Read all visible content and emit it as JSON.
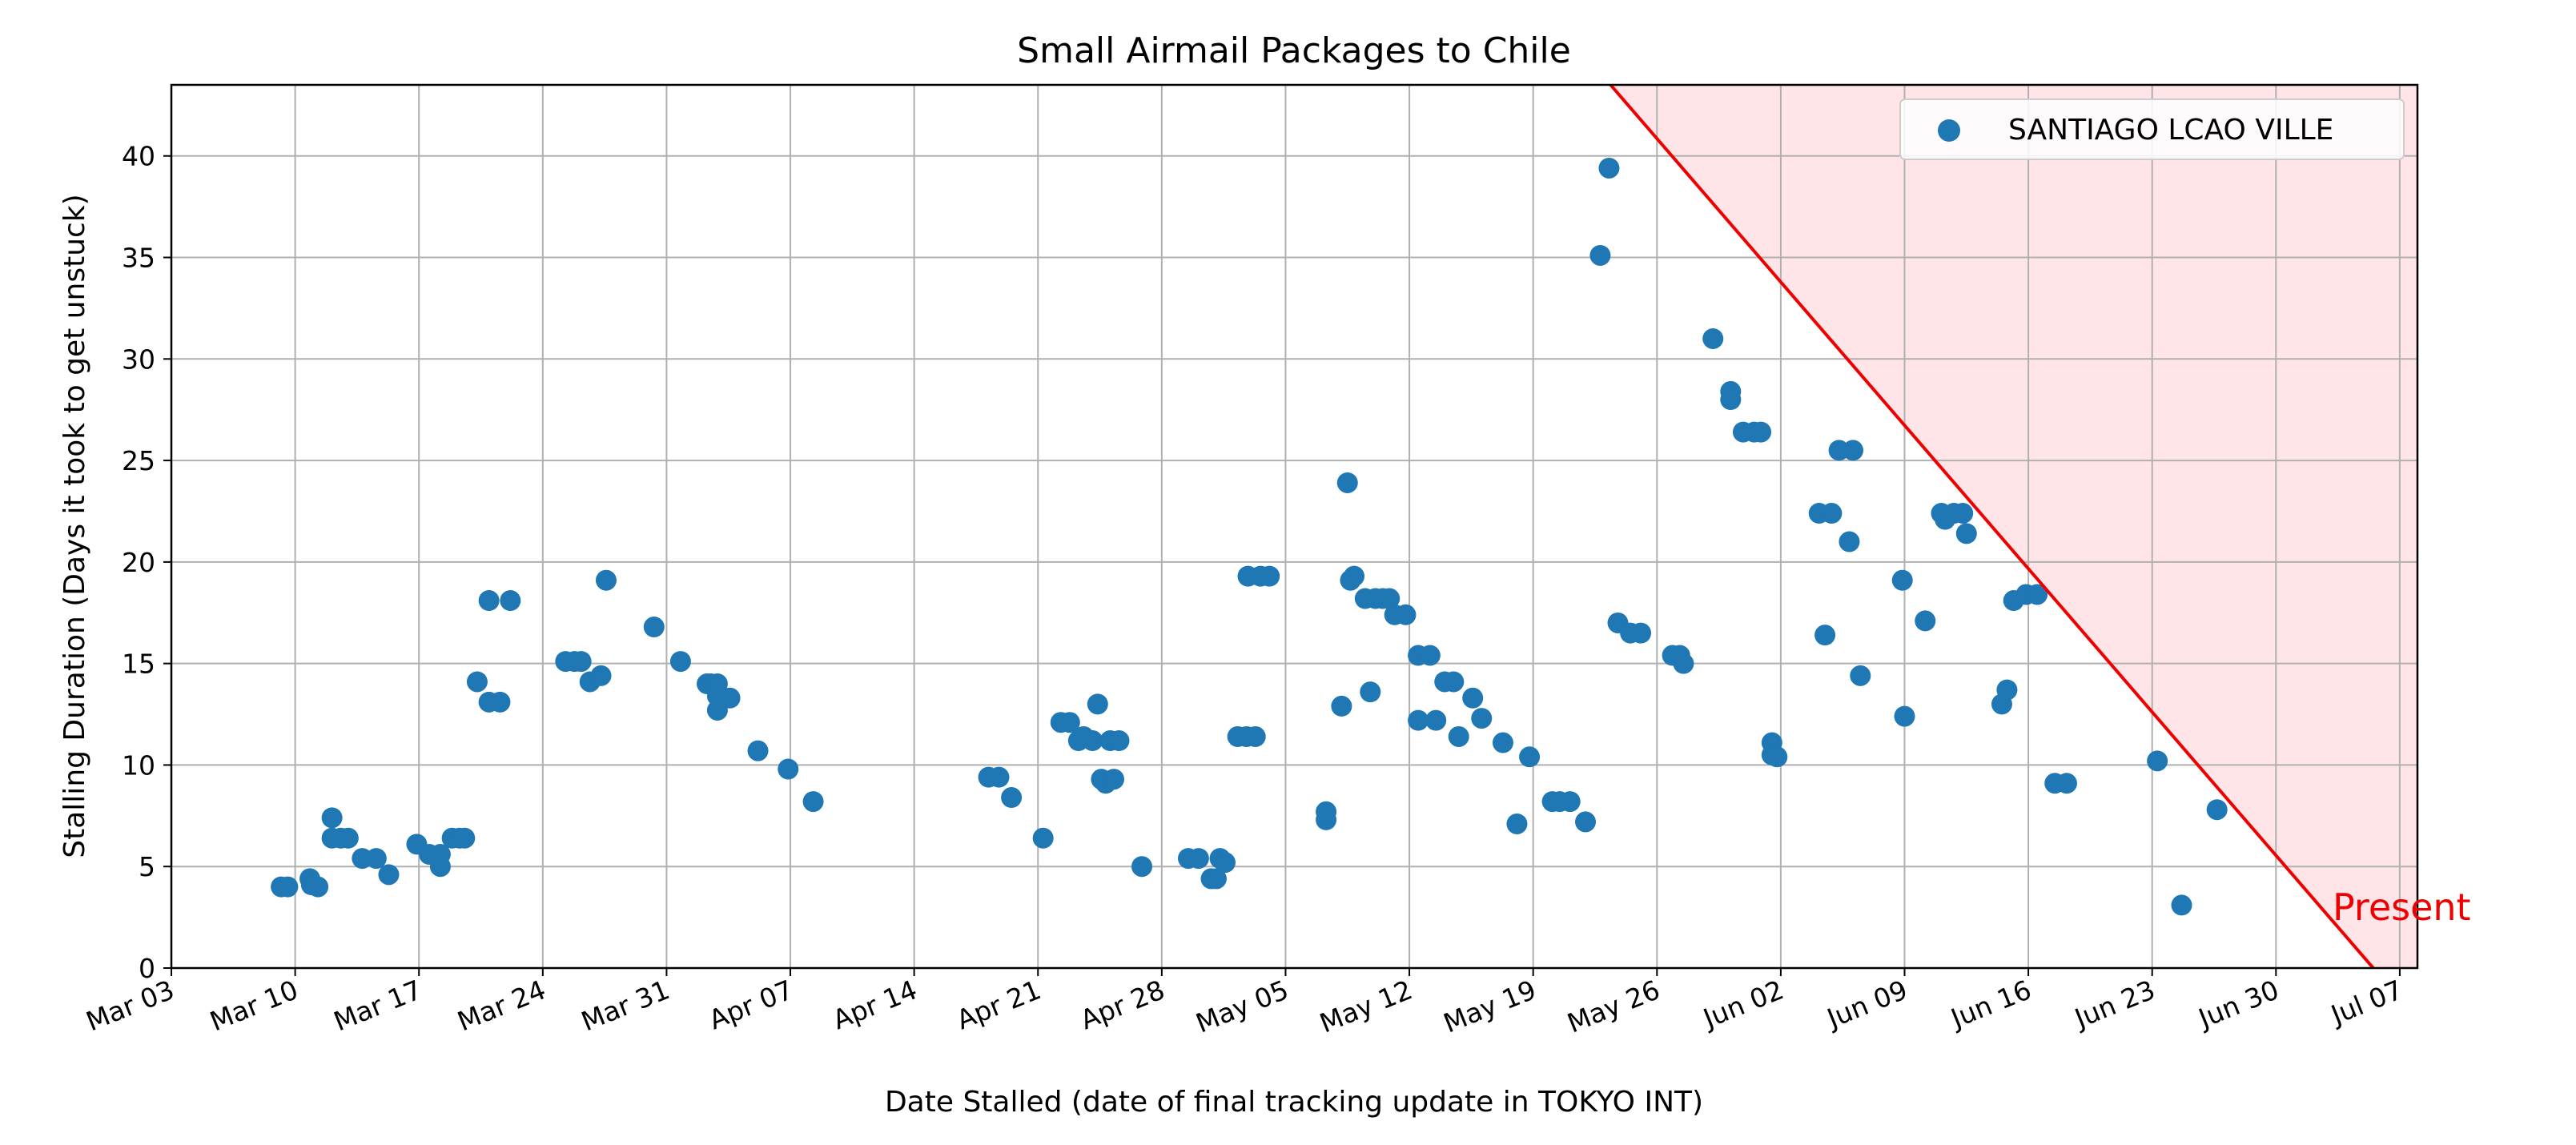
{
  "chart_data": {
    "type": "scatter",
    "title": "Small Airmail Packages to Chile",
    "xlabel": "Date Stalled (date of final tracking update in TOKYO INT)",
    "ylabel": "Stalling Duration (Days it took to get unstuck)",
    "x_axis_type": "date",
    "xlim": [
      "2024-03-03",
      "2024-07-08"
    ],
    "ylim": [
      0,
      43.5
    ],
    "x_ticks": [
      "Mar 03",
      "Mar 10",
      "Mar 17",
      "Mar 24",
      "Mar 31",
      "Apr 07",
      "Apr 14",
      "Apr 21",
      "Apr 28",
      "May 05",
      "May 12",
      "May 19",
      "May 26",
      "Jun 02",
      "Jun 09",
      "Jun 16",
      "Jun 23",
      "Jun 30",
      "Jul 07"
    ],
    "y_ticks": [
      0,
      5,
      10,
      15,
      20,
      25,
      30,
      35,
      40
    ],
    "grid": true,
    "legend_position": "top-right",
    "marker_color": "#1f77b4",
    "series": [
      {
        "name": "SANTIAGO LCAO VILLE",
        "points": [
          {
            "x": "2024-03-09T05:00",
            "y": 4.0
          },
          {
            "x": "2024-03-09T14:00",
            "y": 4.0
          },
          {
            "x": "2024-03-10T20:00",
            "y": 4.4
          },
          {
            "x": "2024-03-10T22:00",
            "y": 4.1
          },
          {
            "x": "2024-03-11T07:00",
            "y": 4.0
          },
          {
            "x": "2024-03-12T02:00",
            "y": 7.4
          },
          {
            "x": "2024-03-12T02:00",
            "y": 6.4
          },
          {
            "x": "2024-03-12T14:00",
            "y": 6.4
          },
          {
            "x": "2024-03-13T00:00",
            "y": 6.4
          },
          {
            "x": "2024-03-13T19:00",
            "y": 5.4
          },
          {
            "x": "2024-03-14T14:00",
            "y": 5.4
          },
          {
            "x": "2024-03-15T07:00",
            "y": 4.6
          },
          {
            "x": "2024-03-16T21:00",
            "y": 6.1
          },
          {
            "x": "2024-03-17T14:00",
            "y": 5.6
          },
          {
            "x": "2024-03-18T05:00",
            "y": 5.0
          },
          {
            "x": "2024-03-18T05:00",
            "y": 5.6
          },
          {
            "x": "2024-03-18T21:00",
            "y": 6.4
          },
          {
            "x": "2024-03-19T07:00",
            "y": 6.4
          },
          {
            "x": "2024-03-19T14:00",
            "y": 6.4
          },
          {
            "x": "2024-03-20T07:00",
            "y": 14.1
          },
          {
            "x": "2024-03-20T23:00",
            "y": 18.1
          },
          {
            "x": "2024-03-20T23:00",
            "y": 13.1
          },
          {
            "x": "2024-03-21T14:00",
            "y": 13.1
          },
          {
            "x": "2024-03-22T04:00",
            "y": 18.1
          },
          {
            "x": "2024-03-25T07:00",
            "y": 15.1
          },
          {
            "x": "2024-03-25T19:00",
            "y": 15.1
          },
          {
            "x": "2024-03-26T04:00",
            "y": 15.1
          },
          {
            "x": "2024-03-26T16:00",
            "y": 14.1
          },
          {
            "x": "2024-03-27T07:00",
            "y": 14.4
          },
          {
            "x": "2024-03-27T14:00",
            "y": 19.1
          },
          {
            "x": "2024-03-30T07:00",
            "y": 16.8
          },
          {
            "x": "2024-03-31T19:00",
            "y": 15.1
          },
          {
            "x": "2024-04-02T07:00",
            "y": 14.0
          },
          {
            "x": "2024-04-02T12:00",
            "y": 14.0
          },
          {
            "x": "2024-04-02T21:00",
            "y": 14.0
          },
          {
            "x": "2024-04-02T21:00",
            "y": 13.4
          },
          {
            "x": "2024-04-02T21:00",
            "y": 12.7
          },
          {
            "x": "2024-04-03T14:00",
            "y": 13.3
          },
          {
            "x": "2024-04-05T04:00",
            "y": 10.7
          },
          {
            "x": "2024-04-06T21:00",
            "y": 9.8
          },
          {
            "x": "2024-04-08T07:00",
            "y": 8.2
          },
          {
            "x": "2024-04-18T05:00",
            "y": 9.4
          },
          {
            "x": "2024-04-18T19:00",
            "y": 9.4
          },
          {
            "x": "2024-04-19T12:00",
            "y": 8.4
          },
          {
            "x": "2024-04-21T07:00",
            "y": 6.4
          },
          {
            "x": "2024-04-22T07:00",
            "y": 12.1
          },
          {
            "x": "2024-04-22T19:00",
            "y": 12.1
          },
          {
            "x": "2024-04-23T07:00",
            "y": 11.2
          },
          {
            "x": "2024-04-23T14:00",
            "y": 11.4
          },
          {
            "x": "2024-04-24T02:00",
            "y": 11.2
          },
          {
            "x": "2024-04-24T09:00",
            "y": 13.0
          },
          {
            "x": "2024-04-24T14:00",
            "y": 9.3
          },
          {
            "x": "2024-04-24T20:00",
            "y": 9.1
          },
          {
            "x": "2024-04-25T02:00",
            "y": 11.2
          },
          {
            "x": "2024-04-25T07:00",
            "y": 9.3
          },
          {
            "x": "2024-04-25T14:00",
            "y": 11.2
          },
          {
            "x": "2024-04-26T21:00",
            "y": 5.0
          },
          {
            "x": "2024-04-29T12:00",
            "y": 5.4
          },
          {
            "x": "2024-04-30T02:00",
            "y": 5.4
          },
          {
            "x": "2024-04-30T19:00",
            "y": 4.4
          },
          {
            "x": "2024-05-01T02:00",
            "y": 4.4
          },
          {
            "x": "2024-05-01T07:00",
            "y": 5.4
          },
          {
            "x": "2024-05-01T14:00",
            "y": 5.2
          },
          {
            "x": "2024-05-02T07:00",
            "y": 11.4
          },
          {
            "x": "2024-05-02T19:00",
            "y": 11.4
          },
          {
            "x": "2024-05-02T21:00",
            "y": 19.3
          },
          {
            "x": "2024-05-03T07:00",
            "y": 11.4
          },
          {
            "x": "2024-05-03T14:00",
            "y": 19.3
          },
          {
            "x": "2024-05-04T02:00",
            "y": 19.3
          },
          {
            "x": "2024-05-07T07:00",
            "y": 7.3
          },
          {
            "x": "2024-05-07T07:00",
            "y": 7.7
          },
          {
            "x": "2024-05-08T04:00",
            "y": 12.9
          },
          {
            "x": "2024-05-08T12:00",
            "y": 23.9
          },
          {
            "x": "2024-05-08T16:00",
            "y": 19.1
          },
          {
            "x": "2024-05-08T21:00",
            "y": 19.3
          },
          {
            "x": "2024-05-09T12:00",
            "y": 18.2
          },
          {
            "x": "2024-05-09T19:00",
            "y": 13.6
          },
          {
            "x": "2024-05-10T02:00",
            "y": 18.2
          },
          {
            "x": "2024-05-10T12:00",
            "y": 18.2
          },
          {
            "x": "2024-05-10T21:00",
            "y": 18.2
          },
          {
            "x": "2024-05-11T04:00",
            "y": 17.4
          },
          {
            "x": "2024-05-11T19:00",
            "y": 17.4
          },
          {
            "x": "2024-05-12T12:00",
            "y": 15.4
          },
          {
            "x": "2024-05-12T12:00",
            "y": 12.2
          },
          {
            "x": "2024-05-13T04:00",
            "y": 15.4
          },
          {
            "x": "2024-05-13T12:00",
            "y": 12.2
          },
          {
            "x": "2024-05-14T00:00",
            "y": 14.1
          },
          {
            "x": "2024-05-14T12:00",
            "y": 14.1
          },
          {
            "x": "2024-05-14T19:00",
            "y": 11.4
          },
          {
            "x": "2024-05-15T14:00",
            "y": 13.3
          },
          {
            "x": "2024-05-16T02:00",
            "y": 12.3
          },
          {
            "x": "2024-05-17T07:00",
            "y": 11.1
          },
          {
            "x": "2024-05-18T02:00",
            "y": 7.1
          },
          {
            "x": "2024-05-18T19:00",
            "y": 10.4
          },
          {
            "x": "2024-05-20T02:00",
            "y": 8.2
          },
          {
            "x": "2024-05-20T12:00",
            "y": 8.2
          },
          {
            "x": "2024-05-21T02:00",
            "y": 8.2
          },
          {
            "x": "2024-05-21T23:00",
            "y": 7.2
          },
          {
            "x": "2024-05-22T19:00",
            "y": 35.1
          },
          {
            "x": "2024-05-23T07:00",
            "y": 39.4
          },
          {
            "x": "2024-05-23T19:00",
            "y": 17.0
          },
          {
            "x": "2024-05-24T12:00",
            "y": 16.5
          },
          {
            "x": "2024-05-25T02:00",
            "y": 16.5
          },
          {
            "x": "2024-05-26T21:00",
            "y": 15.4
          },
          {
            "x": "2024-05-27T07:00",
            "y": 15.4
          },
          {
            "x": "2024-05-27T12:00",
            "y": 15.0
          },
          {
            "x": "2024-05-29T04:00",
            "y": 31.0
          },
          {
            "x": "2024-05-30T04:00",
            "y": 28.4
          },
          {
            "x": "2024-05-30T04:00",
            "y": 28.0
          },
          {
            "x": "2024-05-30T21:00",
            "y": 26.4
          },
          {
            "x": "2024-05-31T12:00",
            "y": 26.4
          },
          {
            "x": "2024-05-31T21:00",
            "y": 26.4
          },
          {
            "x": "2024-06-01T12:00",
            "y": 11.1
          },
          {
            "x": "2024-06-01T12:00",
            "y": 10.5
          },
          {
            "x": "2024-06-01T19:00",
            "y": 10.4
          },
          {
            "x": "2024-06-04T04:00",
            "y": 22.4
          },
          {
            "x": "2024-06-04T12:00",
            "y": 16.4
          },
          {
            "x": "2024-06-04T21:00",
            "y": 22.4
          },
          {
            "x": "2024-06-05T07:00",
            "y": 25.5
          },
          {
            "x": "2024-06-05T21:00",
            "y": 21.0
          },
          {
            "x": "2024-06-06T02:00",
            "y": 25.5
          },
          {
            "x": "2024-06-06T12:00",
            "y": 14.4
          },
          {
            "x": "2024-06-08T21:00",
            "y": 19.1
          },
          {
            "x": "2024-06-09T00:00",
            "y": 12.4
          },
          {
            "x": "2024-06-10T04:00",
            "y": 17.1
          },
          {
            "x": "2024-06-11T02:00",
            "y": 22.4
          },
          {
            "x": "2024-06-11T07:00",
            "y": 22.1
          },
          {
            "x": "2024-06-11T19:00",
            "y": 22.4
          },
          {
            "x": "2024-06-12T07:00",
            "y": 22.4
          },
          {
            "x": "2024-06-12T12:00",
            "y": 21.4
          },
          {
            "x": "2024-06-14T12:00",
            "y": 13.0
          },
          {
            "x": "2024-06-14T19:00",
            "y": 13.7
          },
          {
            "x": "2024-06-15T04:00",
            "y": 18.1
          },
          {
            "x": "2024-06-15T21:00",
            "y": 18.4
          },
          {
            "x": "2024-06-16T12:00",
            "y": 18.4
          },
          {
            "x": "2024-06-17T12:00",
            "y": 9.1
          },
          {
            "x": "2024-06-18T04:00",
            "y": 9.1
          },
          {
            "x": "2024-06-23T07:00",
            "y": 10.2
          },
          {
            "x": "2024-06-24T16:00",
            "y": 3.1
          },
          {
            "x": "2024-06-26T16:00",
            "y": 7.8
          }
        ]
      }
    ],
    "present_region": {
      "label": "Present",
      "line_color": "#ee0000",
      "fill_color": "#ffe4e8",
      "line_start": {
        "x": "2024-05-23T09:00",
        "y": 43.5
      },
      "line_end": {
        "x": "2024-07-05T12:00",
        "y": 0
      }
    }
  }
}
